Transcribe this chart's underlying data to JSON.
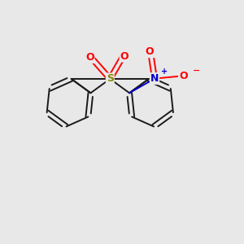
{
  "bg_color": "#e8e8e8",
  "bond_color": "#1a1a1a",
  "bond_width": 1.4,
  "S_color": "#888800",
  "O_color": "#ff0000",
  "N_color": "#0000cc",
  "figsize": [
    3.0,
    3.0
  ],
  "dpi": 100,
  "xlim": [
    0,
    10
  ],
  "ylim": [
    0,
    10
  ]
}
